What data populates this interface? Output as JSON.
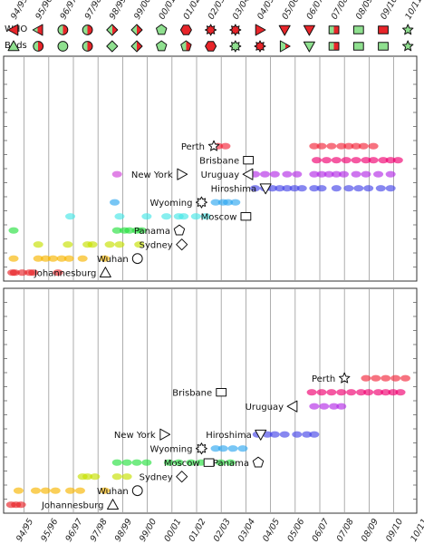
{
  "chart_data": {
    "type": "scatter",
    "seasons": [
      "94/95",
      "95/96",
      "96/97",
      "97/98",
      "98/99",
      "99/00",
      "00/01",
      "01/02",
      "02/03",
      "03/04",
      "04/05",
      "05/06",
      "06/07",
      "07/08",
      "08/09",
      "09/10",
      "10/11"
    ],
    "legend": {
      "rows": [
        "WHO",
        "Buds"
      ],
      "who_symbols": [
        "tri-left-red",
        "tri-left-halfred",
        "circle-halfred",
        "circle-halfred",
        "diamond-halfred",
        "diamond-halfred",
        "pentagon-green",
        "hexagon-red",
        "sun-red",
        "sun-red",
        "tri-right-red",
        "tri-down-red",
        "tri-down-red",
        "square-halfred",
        "square-green",
        "square-red",
        "star-green"
      ],
      "bud_symbols": [
        "tri-up-green",
        "circle-halfred",
        "circle-green",
        "circle-halfred",
        "diamond-green",
        "diamond-halfred",
        "pentagon-green",
        "pentagon-halfred",
        "hexagon-red",
        "sun-green",
        "sun-red",
        "tri-right-halfred",
        "tri-down-green",
        "square-halfred",
        "square-green",
        "square-green",
        "star-green"
      ]
    },
    "panels": [
      {
        "n_rows": 16,
        "strains": [
          {
            "name": "Johannesburg",
            "color": "#e8252a",
            "row": 0,
            "points": [
              -0.05,
              0.05,
              0.35,
              0.65,
              0.8,
              1.8
            ],
            "label_season": 3.8,
            "shape": "triangle-up"
          },
          {
            "name": "Wuhan",
            "color": "#f7b500",
            "row": 1,
            "points": [
              0,
              1,
              1.3,
              1.6,
              1.95,
              2.25,
              2.8,
              3.7
            ],
            "label_season": 5.1,
            "shape": "circle"
          },
          {
            "name": "Sydney",
            "color": "#c6e000",
            "row": 2,
            "points": [
              1.0,
              2.2,
              3.0,
              3.2,
              3.9,
              4.3,
              5.1
            ],
            "label_season": 6.9,
            "shape": "diamond"
          },
          {
            "name": "Panama",
            "color": "#28e040",
            "row": 3,
            "points": [
              0,
              4.2,
              4.5,
              4.7,
              5.0,
              5.2
            ],
            "label_season": 6.8,
            "shape": "pentagon"
          },
          {
            "name": "Moscow",
            "color": "#46e6e6",
            "row": 4,
            "points": [
              2.3,
              4.3,
              5.4,
              6.2,
              6.7,
              6.9,
              7.4,
              7.8
            ],
            "label_season": 9.5,
            "shape": "square"
          },
          {
            "name": "Wyoming",
            "color": "#30a8f0",
            "row": 5,
            "points": [
              4.1,
              8.2,
              8.5,
              8.7,
              9.0
            ],
            "label_season": 7.7,
            "shape": "sun"
          },
          {
            "name": "Hiroshima",
            "color": "#4646e8",
            "row": 6,
            "points": [
              9.8,
              10.2,
              10.5,
              10.8,
              11.1,
              11.4,
              11.7,
              12.2,
              12.5,
              13.1,
              13.6,
              14.0,
              14.4,
              14.9,
              15.3
            ],
            "label_season": 10.3,
            "shape": "triangle-down"
          },
          {
            "name": "Uruguay",
            "color": "#b42ce6",
            "row": 7,
            "points": [
              9.8,
              10.2,
              10.6,
              11.1,
              11.5,
              12.2,
              12.5,
              12.8,
              13.1,
              13.4,
              13.9,
              14.3,
              14.8,
              15.3
            ],
            "label_season": 9.6,
            "shape": "triangle-left"
          },
          {
            "name": "New York",
            "color": "#d040d8",
            "row": 7,
            "points": [
              4.2
            ],
            "label_season": 6.9,
            "shape": "triangle-right"
          },
          {
            "name": "Brisbane",
            "color": "#f00070",
            "row": 8,
            "points": [
              12.3,
              12.7,
              13.1,
              13.5,
              13.9,
              14.3,
              14.6,
              15.0,
              15.3,
              15.6
            ],
            "label_season": 9.6,
            "shape": "square"
          },
          {
            "name": "Perth",
            "color": "#f2283c",
            "row": 9,
            "points": [
              8.3,
              8.6,
              12.2,
              12.5,
              12.9,
              13.3,
              13.6,
              13.9,
              14.2,
              14.6
            ],
            "label_season": 8.2,
            "shape": "star"
          }
        ]
      },
      {
        "n_rows": 16,
        "strains": [
          {
            "name": "Johannesburg",
            "color": "#e8252a",
            "row": 0,
            "points": [
              -0.1,
              0.1,
              0.3
            ],
            "label_season": 4.1,
            "shape": "triangle-up"
          },
          {
            "name": "Wuhan",
            "color": "#f7b500",
            "row": 1,
            "points": [
              0.2,
              0.9,
              1.3,
              1.7,
              2.3,
              2.7,
              3.7
            ],
            "label_season": 5.1,
            "shape": "circle"
          },
          {
            "name": "Sydney",
            "color": "#c6e000",
            "row": 2,
            "points": [
              2.8,
              3.0,
              3.3,
              4.2,
              4.6
            ],
            "label_season": 6.9,
            "shape": "diamond"
          },
          {
            "name": "Panama",
            "color": "#28e040",
            "row": 3,
            "points": [
              4.2,
              4.6,
              5.0,
              5.4,
              6.3,
              6.7,
              7.2,
              7.6,
              8.4,
              8.8
            ],
            "label_season": 10.0,
            "shape": "pentagon"
          },
          {
            "name": "Moscow",
            "color": "#46e6e6",
            "row": 3,
            "points": [],
            "label_season": 8.0,
            "shape": "square"
          },
          {
            "name": "Wyoming",
            "color": "#30a8f0",
            "row": 4,
            "points": [
              8.2,
              8.5,
              8.9,
              9.3
            ],
            "label_season": 7.7,
            "shape": "sun"
          },
          {
            "name": "Hiroshima",
            "color": "#4646e8",
            "row": 5,
            "points": [
              9.9,
              10.3,
              10.6,
              11.0,
              11.5,
              11.9,
              12.2
            ],
            "label_season": 10.1,
            "shape": "triangle-down"
          },
          {
            "name": "New York",
            "color": "#d040d8",
            "row": 5,
            "points": [],
            "label_season": 6.2,
            "shape": "triangle-right"
          },
          {
            "name": "Uruguay",
            "color": "#b42ce6",
            "row": 7,
            "points": [
              12.2,
              12.6,
              13.0,
              13.3
            ],
            "label_season": 11.4,
            "shape": "triangle-left"
          },
          {
            "name": "Brisbane",
            "color": "#f00070",
            "row": 8,
            "points": [
              12.1,
              12.5,
              12.9,
              13.3,
              13.7,
              14.1,
              14.4,
              14.8,
              15.1,
              15.4,
              15.7
            ],
            "label_season": 8.5,
            "shape": "square"
          },
          {
            "name": "Perth",
            "color": "#f2283c",
            "row": 9,
            "points": [
              14.3,
              14.7,
              15.1,
              15.5,
              15.9
            ],
            "label_season": 13.5,
            "shape": "star"
          }
        ]
      }
    ]
  },
  "page": {
    "season_labels": [
      "94/95",
      "95/96",
      "96/97",
      "97/98",
      "98/99",
      "99/00",
      "00/01",
      "01/02",
      "02/03",
      "03/04",
      "04/05",
      "05/06",
      "06/07",
      "07/08",
      "08/09",
      "09/10",
      "10/11"
    ],
    "legend_rows": [
      "WHO",
      "Buds"
    ]
  }
}
